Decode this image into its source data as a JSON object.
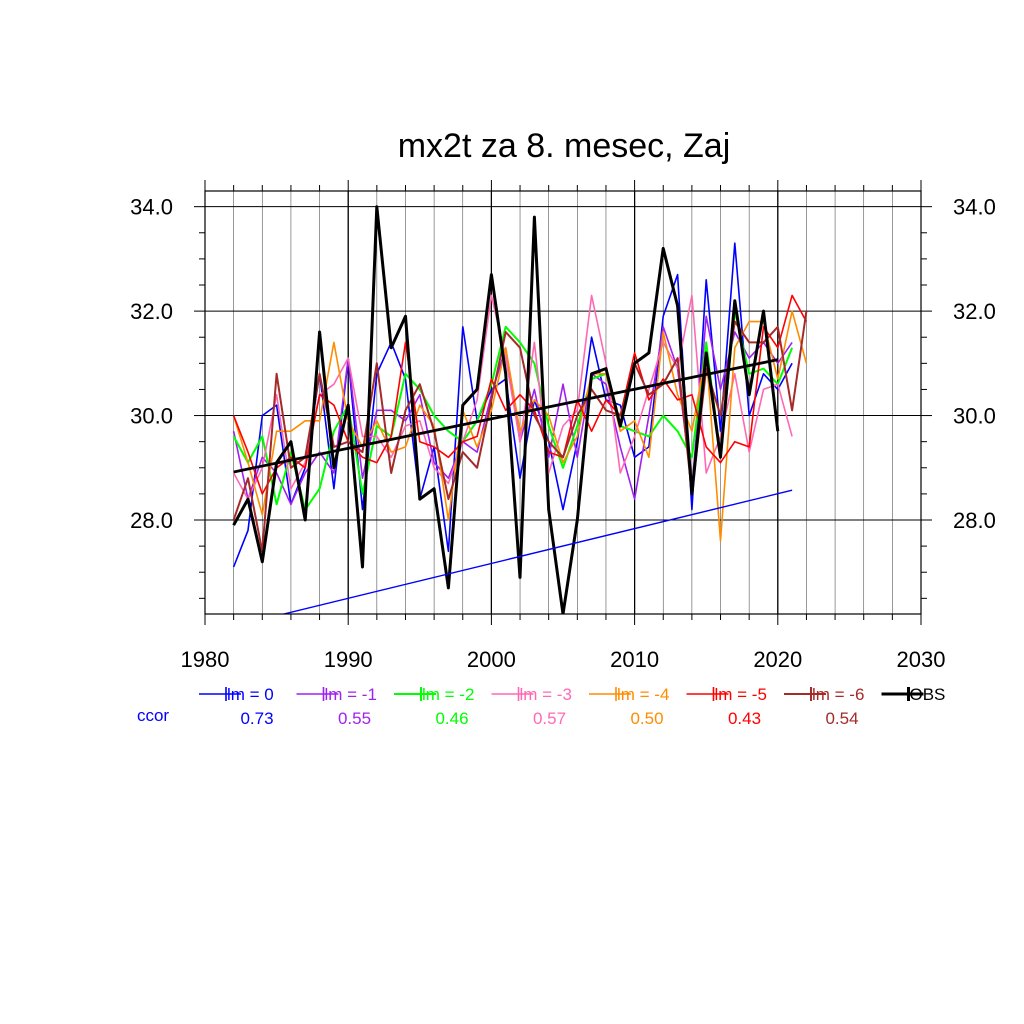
{
  "chart_data": {
    "type": "line",
    "title": "mx2t za 8. mesec, Zaj",
    "xlabel": "",
    "ylabel": "",
    "xlim": [
      1980,
      2030
    ],
    "ylim": [
      26.2,
      34.3
    ],
    "x_ticks": [
      "1980",
      "1990",
      "2000",
      "2010",
      "2020",
      "2030"
    ],
    "y_ticks": [
      "28.0",
      "30.0",
      "32.0",
      "34.0"
    ],
    "grid": true,
    "legend_position": "bottom",
    "ccor_label": "ccor",
    "series": [
      {
        "name": "lm = 0",
        "color": "#0000ff",
        "width": 1.6,
        "ccor": "0.73",
        "x": [
          1982,
          1983,
          1984,
          1985,
          1986,
          1987,
          1988,
          1989,
          1990,
          1991,
          1992,
          1993,
          1994,
          1995,
          1996,
          1997,
          1998,
          1999,
          2000,
          2001,
          2002,
          2003,
          2004,
          2005,
          2006,
          2007,
          2008,
          2009,
          2010,
          2011,
          2012,
          2013,
          2014,
          2015,
          2016,
          2017,
          2018,
          2019,
          2020,
          2021
        ],
        "y": [
          27.1,
          27.8,
          30.0,
          30.2,
          28.3,
          29.0,
          30.8,
          28.6,
          31.1,
          28.2,
          30.8,
          31.4,
          30.7,
          28.4,
          29.4,
          27.4,
          31.7,
          29.9,
          30.5,
          30.7,
          28.8,
          30.3,
          29.5,
          28.2,
          29.5,
          31.5,
          30.3,
          30.2,
          29.2,
          29.4,
          31.9,
          32.7,
          28.2,
          32.6,
          29.7,
          33.3,
          30.0,
          30.8,
          30.5,
          31.0
        ]
      },
      {
        "name": "lm = -1",
        "color": "#a020f0",
        "width": 1.6,
        "ccor": "0.55",
        "x": [
          1982,
          1983,
          1984,
          1985,
          1986,
          1987,
          1988,
          1989,
          1990,
          1991,
          1992,
          1993,
          1994,
          1995,
          1996,
          1997,
          1998,
          1999,
          2000,
          2001,
          2002,
          2003,
          2004,
          2005,
          2006,
          2007,
          2008,
          2009,
          2010,
          2011,
          2012,
          2013,
          2014,
          2015,
          2016,
          2017,
          2018,
          2019,
          2020,
          2021
        ],
        "y": [
          29.7,
          28.4,
          29.2,
          28.9,
          28.3,
          28.9,
          29.3,
          28.9,
          31.1,
          28.8,
          30.1,
          30.1,
          29.9,
          30.4,
          29.1,
          28.8,
          29.5,
          29.3,
          30.4,
          31.3,
          29.5,
          30.5,
          29.2,
          30.6,
          29.2,
          30.8,
          30.6,
          29.4,
          28.4,
          30.0,
          31.7,
          30.9,
          28.6,
          31.9,
          30.5,
          31.6,
          31.1,
          31.4,
          31.0,
          31.4
        ]
      },
      {
        "name": "lm = -2",
        "color": "#00ff00",
        "width": 2.0,
        "ccor": "0.46",
        "x": [
          1982,
          1983,
          1984,
          1985,
          1986,
          1987,
          1988,
          1989,
          1990,
          1991,
          1992,
          1993,
          1994,
          1995,
          1996,
          1997,
          1998,
          1999,
          2000,
          2001,
          2002,
          2003,
          2004,
          2005,
          2006,
          2007,
          2008,
          2009,
          2010,
          2011,
          2012,
          2013,
          2014,
          2015,
          2016,
          2017,
          2018,
          2019,
          2020,
          2021
        ],
        "y": [
          29.6,
          29.1,
          29.6,
          28.3,
          29.3,
          28.2,
          28.6,
          29.7,
          30.2,
          28.5,
          29.8,
          29.6,
          30.8,
          30.5,
          30.0,
          29.7,
          29.5,
          29.9,
          30.6,
          31.7,
          31.4,
          31.0,
          29.8,
          29.0,
          29.8,
          30.7,
          30.8,
          29.8,
          29.7,
          29.6,
          30.0,
          29.7,
          29.2,
          31.4,
          29.2,
          32.0,
          30.8,
          30.9,
          30.6,
          31.3
        ]
      },
      {
        "name": "lm = -3",
        "color": "#ff69b4",
        "width": 1.6,
        "ccor": "0.57",
        "x": [
          1982,
          1983,
          1984,
          1985,
          1986,
          1987,
          1988,
          1989,
          1990,
          1991,
          1992,
          1993,
          1994,
          1995,
          1996,
          1997,
          1998,
          1999,
          2000,
          2001,
          2002,
          2003,
          2004,
          2005,
          2006,
          2007,
          2008,
          2009,
          2010,
          2011,
          2012,
          2013,
          2014,
          2015,
          2016,
          2017,
          2018,
          2019,
          2020,
          2021
        ],
        "y": [
          28.9,
          28.4,
          29.0,
          30.4,
          28.6,
          29.1,
          30.4,
          30.6,
          31.1,
          29.6,
          29.6,
          29.2,
          29.8,
          29.9,
          29.0,
          28.7,
          29.5,
          30.3,
          32.3,
          31.1,
          29.5,
          31.4,
          28.9,
          29.8,
          30.1,
          32.3,
          31.0,
          28.9,
          29.6,
          30.5,
          31.4,
          30.9,
          32.3,
          28.9,
          29.6,
          30.8,
          29.3,
          30.5,
          30.6,
          29.6
        ]
      },
      {
        "name": "lm = -4",
        "color": "#ff8c00",
        "width": 1.6,
        "ccor": "0.50",
        "x": [
          1982,
          1983,
          1984,
          1985,
          1986,
          1987,
          1988,
          1989,
          1990,
          1991,
          1992,
          1993,
          1994,
          1995,
          1996,
          1997,
          1998,
          1999,
          2000,
          2001,
          2002,
          2003,
          2004,
          2005,
          2006,
          2007,
          2008,
          2009,
          2010,
          2011,
          2012,
          2013,
          2014,
          2015,
          2016,
          2017,
          2018,
          2019,
          2020,
          2021,
          2022
        ],
        "y": [
          30.0,
          29.1,
          28.1,
          29.7,
          29.7,
          29.9,
          29.9,
          31.4,
          29.9,
          29.4,
          29.9,
          29.3,
          29.4,
          30.2,
          29.8,
          28.0,
          30.1,
          29.4,
          30.1,
          31.3,
          29.7,
          30.3,
          30.0,
          29.1,
          29.6,
          30.8,
          30.8,
          29.7,
          29.9,
          29.2,
          31.6,
          30.4,
          29.7,
          31.2,
          27.6,
          31.3,
          31.8,
          31.8,
          30.7,
          32.0,
          31.0
        ]
      },
      {
        "name": "lm = -5",
        "color": "#ff0000",
        "width": 1.6,
        "ccor": "0.43",
        "x": [
          1982,
          1983,
          1984,
          1985,
          1986,
          1987,
          1988,
          1989,
          1990,
          1991,
          1992,
          1993,
          1994,
          1995,
          1996,
          1997,
          1998,
          1999,
          2000,
          2001,
          2002,
          2003,
          2004,
          2005,
          2006,
          2007,
          2008,
          2009,
          2010,
          2011,
          2012,
          2013,
          2014,
          2015,
          2016,
          2017,
          2018,
          2019,
          2020,
          2021,
          2022
        ],
        "y": [
          30.0,
          29.3,
          28.5,
          29.0,
          29.2,
          29.0,
          30.4,
          30.2,
          29.5,
          29.2,
          29.1,
          29.6,
          31.4,
          29.5,
          29.4,
          29.2,
          29.5,
          29.6,
          30.7,
          30.1,
          30.4,
          30.1,
          29.3,
          29.2,
          30.3,
          29.7,
          30.3,
          30.0,
          31.2,
          30.3,
          30.7,
          30.3,
          30.4,
          29.4,
          29.1,
          29.5,
          29.4,
          31.7,
          31.3,
          32.3,
          31.8
        ]
      },
      {
        "name": "lm = -6",
        "color": "#a52a2a",
        "width": 2.0,
        "ccor": "0.54",
        "x": [
          1982,
          1983,
          1984,
          1985,
          1986,
          1987,
          1988,
          1989,
          1990,
          1991,
          1992,
          1993,
          1994,
          1995,
          1996,
          1997,
          1998,
          1999,
          2000,
          2001,
          2002,
          2003,
          2004,
          2005,
          2006,
          2007,
          2008,
          2009,
          2010,
          2011,
          2012,
          2013,
          2014,
          2015,
          2016,
          2017,
          2018,
          2019,
          2020,
          2021,
          2022
        ],
        "y": [
          28.0,
          28.8,
          27.4,
          30.8,
          29.0,
          29.2,
          30.8,
          29.4,
          29.5,
          29.3,
          31.0,
          28.9,
          30.1,
          30.6,
          29.7,
          28.4,
          29.3,
          29.0,
          30.3,
          31.6,
          31.3,
          30.0,
          29.5,
          29.2,
          30.0,
          30.5,
          30.1,
          30.0,
          31.0,
          30.4,
          30.6,
          31.1,
          28.5,
          30.9,
          30.0,
          31.8,
          31.4,
          31.4,
          31.7,
          30.1,
          32.0
        ]
      },
      {
        "name": "OBS",
        "color": "#000000",
        "width": 3.0,
        "ccor": "",
        "x": [
          1982,
          1983,
          1984,
          1985,
          1986,
          1987,
          1988,
          1989,
          1990,
          1991,
          1992,
          1993,
          1994,
          1995,
          1996,
          1997,
          1998,
          1999,
          2000,
          2001,
          2002,
          2003,
          2004,
          2005,
          2006,
          2007,
          2008,
          2009,
          2010,
          2011,
          2012,
          2013,
          2014,
          2015,
          2016,
          2017,
          2018,
          2019,
          2020
        ],
        "y": [
          27.9,
          28.4,
          27.2,
          29.1,
          29.5,
          28.0,
          31.6,
          29.0,
          30.2,
          27.1,
          34.0,
          31.3,
          31.9,
          28.4,
          28.6,
          26.7,
          30.2,
          30.5,
          32.7,
          30.8,
          26.9,
          33.8,
          28.2,
          26.2,
          28.0,
          30.8,
          30.9,
          29.8,
          31.0,
          31.2,
          33.2,
          32.1,
          28.5,
          31.2,
          29.2,
          32.2,
          30.4,
          32.0,
          29.7
        ]
      }
    ],
    "trend_lines": [
      {
        "name": "OBS trend",
        "color": "#000000",
        "width": 2.8,
        "x": [
          1982,
          2020
        ],
        "y": [
          28.92,
          31.07
        ]
      },
      {
        "name": "lm = 0 trend",
        "color": "#0000ff",
        "width": 1.4,
        "x": [
          1985.5,
          2021
        ],
        "y": [
          26.2,
          28.57
        ]
      }
    ]
  }
}
